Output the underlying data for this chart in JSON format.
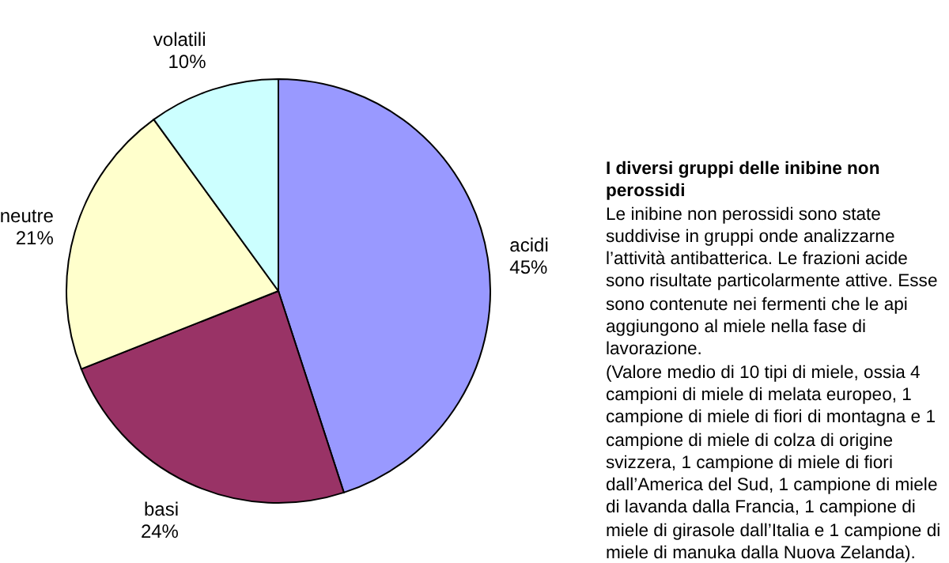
{
  "chart_data": {
    "type": "pie",
    "title": "I diversi gruppi delle inibine non perossidi",
    "annotations": [
      "Le inibine non perossidi sono state suddivise in gruppi onde analizzarne l’attività antibatterica. Le frazioni acide sono risultate particolarmente attive. Esse sono contenute nei fermenti che le api aggiungono al miele nella fase di lavorazione.",
      "(Valore medio di 10 tipi di miele, ossia 4 campioni di miele di melata europeo, 1 campione di miele di fiori di montagna e 1 campione di miele di colza di origine svizzera, 1 campione di miele di fiori dall’America del Sud, 1 campione di miele di lavanda dalla Francia, 1 campione di miele di girasole dall’Italia e 1 campione di miele di manuka dalla Nuova Zelanda)."
    ],
    "categories": [
      "acidi",
      "basi",
      "neutre",
      "volatili"
    ],
    "values": [
      45,
      24,
      21,
      10
    ],
    "value_labels": [
      "45%",
      "24%",
      "21%",
      "10%"
    ],
    "colors": [
      "#9999ff",
      "#993366",
      "#ffffcc",
      "#ccffff"
    ]
  }
}
